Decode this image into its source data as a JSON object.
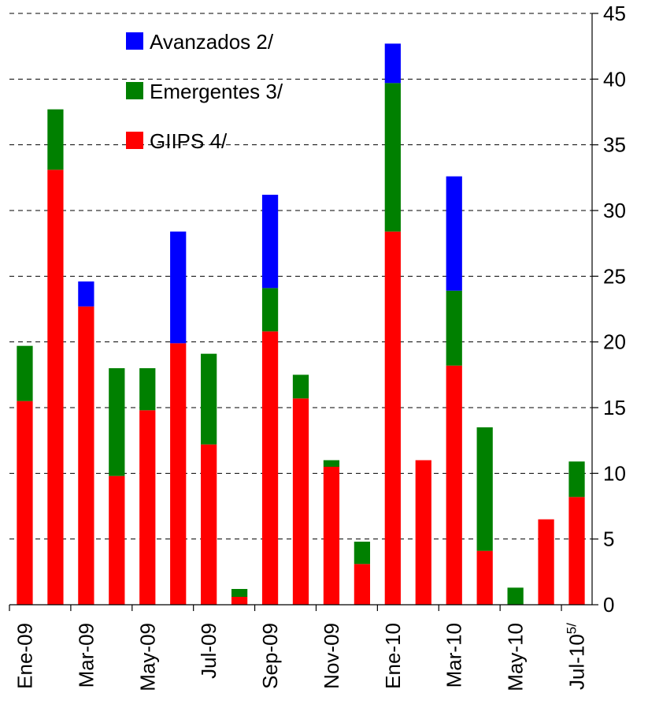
{
  "chart_data": {
    "type": "bar",
    "stacked": true,
    "categories": [
      "Ene-09",
      null,
      "Mar-09",
      null,
      "May-09",
      null,
      "Jul-09",
      null,
      "Sep-09",
      null,
      "Nov-09",
      null,
      "Ene-10",
      null,
      "Mar-10",
      null,
      "May-10",
      null,
      "Jul-10"
    ],
    "category_footnote": {
      "index": 18,
      "label": "5/"
    },
    "series": [
      {
        "name": "Avanzados 2/",
        "color": "#0000ff",
        "values": [
          0,
          0,
          1.9,
          0,
          0,
          8.5,
          0,
          0,
          7.1,
          0,
          0,
          0,
          3.0,
          0,
          8.7,
          0,
          0,
          0,
          0
        ]
      },
      {
        "name": "Emergentes 3/",
        "color": "#008000",
        "values": [
          4.2,
          4.6,
          0,
          8.2,
          3.2,
          0,
          6.9,
          0.6,
          3.3,
          1.8,
          0.5,
          1.7,
          11.3,
          0,
          5.7,
          9.4,
          1.3,
          0,
          2.7
        ]
      },
      {
        "name": "GIIPS 4/",
        "color": "#ff0000",
        "values": [
          15.5,
          33.1,
          22.7,
          9.8,
          14.8,
          19.9,
          12.2,
          0.6,
          20.8,
          15.7,
          10.5,
          3.1,
          28.4,
          11.0,
          18.2,
          4.1,
          0,
          6.5,
          8.2
        ]
      }
    ],
    "ylim": [
      0,
      45
    ],
    "yticks": [
      0,
      5,
      10,
      15,
      20,
      25,
      30,
      35,
      40,
      45
    ],
    "y_axis_side": "right",
    "grid": true,
    "legend": "top-left"
  }
}
